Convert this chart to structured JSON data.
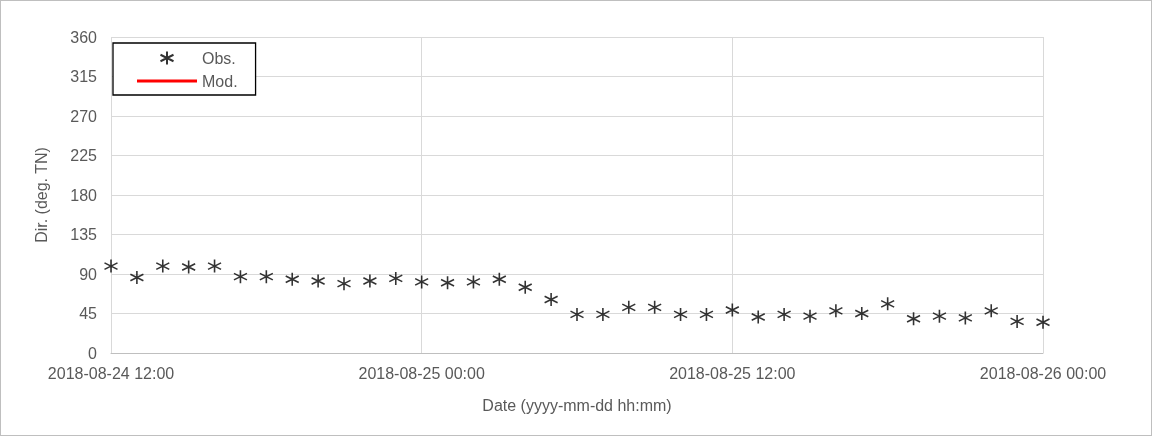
{
  "chart_data": {
    "type": "scatter",
    "xlabel": "Date (yyyy-mm-dd hh:mm)",
    "ylabel": "Dir. (deg. TN)",
    "x": [
      "2018-08-24T12:00",
      "2018-08-24T13:00",
      "2018-08-24T14:00",
      "2018-08-24T15:00",
      "2018-08-24T16:00",
      "2018-08-24T17:00",
      "2018-08-24T18:00",
      "2018-08-24T19:00",
      "2018-08-24T20:00",
      "2018-08-24T21:00",
      "2018-08-24T22:00",
      "2018-08-24T23:00",
      "2018-08-25T00:00",
      "2018-08-25T01:00",
      "2018-08-25T02:00",
      "2018-08-25T03:00",
      "2018-08-25T04:00",
      "2018-08-25T05:00",
      "2018-08-25T06:00",
      "2018-08-25T07:00",
      "2018-08-25T08:00",
      "2018-08-25T09:00",
      "2018-08-25T10:00",
      "2018-08-25T11:00",
      "2018-08-25T12:00",
      "2018-08-25T13:00",
      "2018-08-25T14:00",
      "2018-08-25T15:00",
      "2018-08-25T16:00",
      "2018-08-25T17:00",
      "2018-08-25T18:00",
      "2018-08-25T19:00",
      "2018-08-25T20:00",
      "2018-08-25T21:00",
      "2018-08-25T22:00",
      "2018-08-25T23:00",
      "2018-08-26T00:00"
    ],
    "series": [
      {
        "name": "Obs.",
        "color": "#000000",
        "marker": "cross",
        "values": [
          99,
          86,
          99,
          98,
          99,
          87,
          87,
          84,
          82,
          79,
          82,
          85,
          81,
          80,
          81,
          84,
          75,
          61,
          44,
          44,
          52,
          52,
          44,
          44,
          49,
          41,
          44,
          42,
          48,
          45,
          56,
          39,
          42,
          40,
          48,
          36,
          35
        ]
      },
      {
        "name": "Mod.",
        "type": "line",
        "color": "#ff0000",
        "marker": "none",
        "values": [
          null,
          null,
          null,
          null,
          null,
          null,
          null,
          null,
          null,
          null,
          null,
          null,
          null,
          null,
          null,
          null,
          null,
          null,
          null,
          null,
          null,
          null,
          null,
          null,
          null,
          null,
          null,
          null,
          null,
          null,
          null,
          null,
          null,
          null,
          null,
          null,
          null
        ]
      }
    ],
    "xlim": [
      "2018-08-24T12:00",
      "2018-08-26T00:00"
    ],
    "xticks": [
      {
        "value": "2018-08-24T12:00",
        "label": "2018-08-24 12:00"
      },
      {
        "value": "2018-08-25T00:00",
        "label": "2018-08-25 00:00"
      },
      {
        "value": "2018-08-25T12:00",
        "label": "2018-08-25 12:00"
      },
      {
        "value": "2018-08-26T00:00",
        "label": "2018-08-26 00:00"
      }
    ],
    "ylim": [
      0,
      360
    ],
    "yticks": [
      0,
      45,
      90,
      135,
      180,
      225,
      270,
      315,
      360
    ],
    "grid": true,
    "legend": "top left"
  }
}
